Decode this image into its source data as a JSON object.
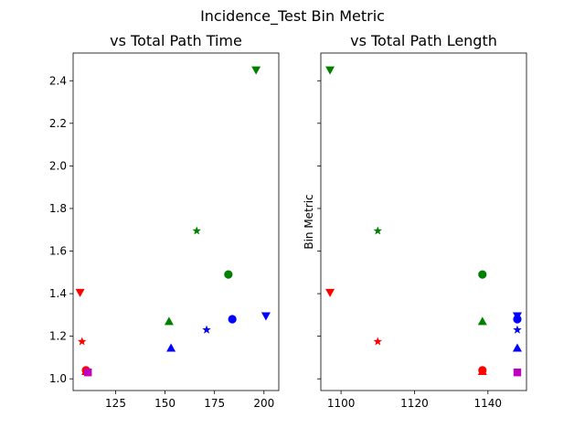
{
  "figure": {
    "suptitle": "Incidence_Test Bin Metric"
  },
  "chart_data": [
    {
      "type": "scatter",
      "title": "vs Total Path Time",
      "xlabel": "",
      "ylabel": "",
      "xlim": [
        103.5,
        207.5
      ],
      "ylim": [
        0.945,
        2.53
      ],
      "xticks": [
        125,
        150,
        175,
        200
      ],
      "yticks": [
        1.0,
        1.2,
        1.4,
        1.6,
        1.8,
        2.0,
        2.2,
        2.4
      ],
      "series": [
        {
          "marker": "triangle-down",
          "color": "#008000",
          "x": 196,
          "y": 2.45
        },
        {
          "marker": "star",
          "color": "#008000",
          "x": 166,
          "y": 1.695
        },
        {
          "marker": "circle",
          "color": "#008000",
          "x": 182,
          "y": 1.49
        },
        {
          "marker": "triangle-up",
          "color": "#008000",
          "x": 152,
          "y": 1.27
        },
        {
          "marker": "triangle-down",
          "color": "#ff0000",
          "x": 107,
          "y": 1.405
        },
        {
          "marker": "star",
          "color": "#ff0000",
          "x": 108,
          "y": 1.175
        },
        {
          "marker": "circle",
          "color": "#ff0000",
          "x": 110,
          "y": 1.04
        },
        {
          "marker": "triangle-up",
          "color": "#ff0000",
          "x": 110,
          "y": 1.035
        },
        {
          "marker": "triangle-down",
          "color": "#0000ff",
          "x": 201,
          "y": 1.295
        },
        {
          "marker": "circle",
          "color": "#0000ff",
          "x": 184,
          "y": 1.28
        },
        {
          "marker": "star",
          "color": "#0000ff",
          "x": 171,
          "y": 1.23
        },
        {
          "marker": "triangle-up",
          "color": "#0000ff",
          "x": 153,
          "y": 1.145
        },
        {
          "marker": "square",
          "color": "#bf00bf",
          "x": 111,
          "y": 1.03
        }
      ]
    },
    {
      "type": "scatter",
      "title": "vs Total Path Length",
      "xlabel": "",
      "ylabel": "Bin Metric",
      "xlim": [
        1094.5,
        1150.5
      ],
      "ylim": [
        0.945,
        2.53
      ],
      "xticks": [
        1100,
        1120,
        1140
      ],
      "yticks": [
        1.0,
        1.2,
        1.4,
        1.6,
        1.8,
        2.0,
        2.2,
        2.4
      ],
      "series": [
        {
          "marker": "triangle-down",
          "color": "#008000",
          "x": 1097,
          "y": 2.45
        },
        {
          "marker": "star",
          "color": "#008000",
          "x": 1110,
          "y": 1.695
        },
        {
          "marker": "circle",
          "color": "#008000",
          "x": 1138.5,
          "y": 1.49
        },
        {
          "marker": "triangle-up",
          "color": "#008000",
          "x": 1138.5,
          "y": 1.27
        },
        {
          "marker": "triangle-down",
          "color": "#ff0000",
          "x": 1097,
          "y": 1.405
        },
        {
          "marker": "star",
          "color": "#ff0000",
          "x": 1110,
          "y": 1.175
        },
        {
          "marker": "circle",
          "color": "#ff0000",
          "x": 1138.5,
          "y": 1.04
        },
        {
          "marker": "triangle-up",
          "color": "#ff0000",
          "x": 1138.5,
          "y": 1.035
        },
        {
          "marker": "triangle-down",
          "color": "#0000ff",
          "x": 1148,
          "y": 1.295
        },
        {
          "marker": "circle",
          "color": "#0000ff",
          "x": 1148,
          "y": 1.28
        },
        {
          "marker": "star",
          "color": "#0000ff",
          "x": 1148,
          "y": 1.23
        },
        {
          "marker": "triangle-up",
          "color": "#0000ff",
          "x": 1148,
          "y": 1.145
        },
        {
          "marker": "square",
          "color": "#bf00bf",
          "x": 1148,
          "y": 1.03
        }
      ]
    }
  ]
}
